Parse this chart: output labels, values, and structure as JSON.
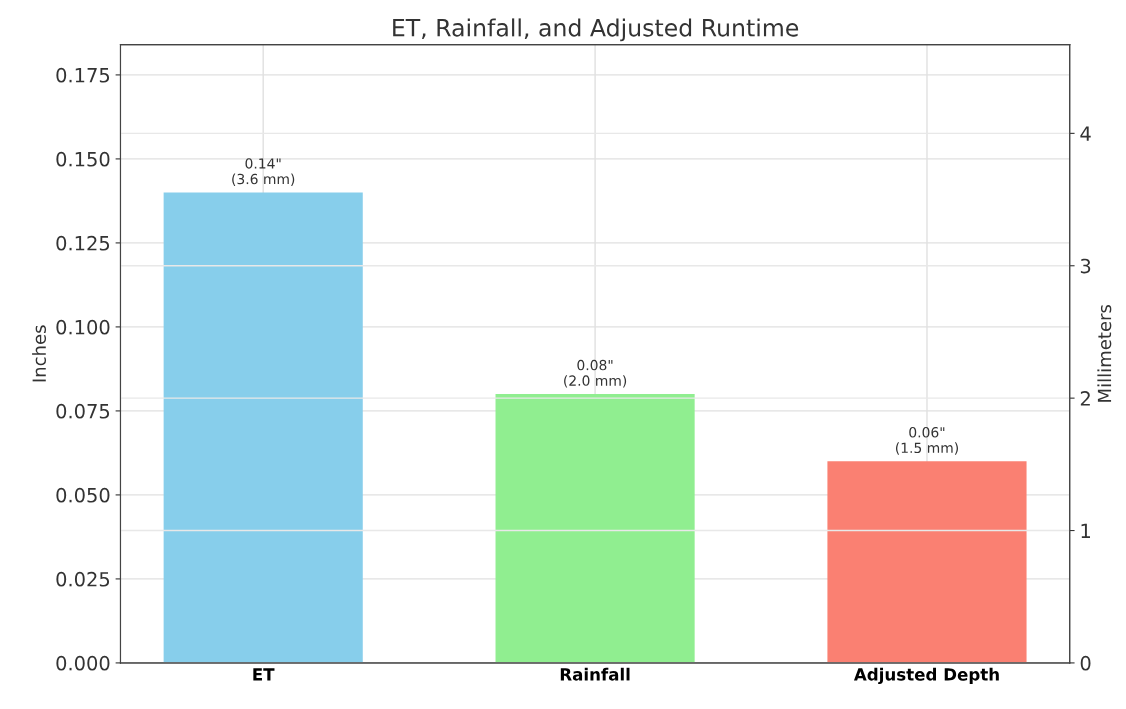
{
  "chart_data": {
    "type": "bar",
    "title": "ET, Rainfall, and Adjusted Runtime",
    "ylabel": "Inches",
    "y2label": "Millimeters",
    "categories": [
      "ET",
      "Rainfall",
      "Adjusted Depth"
    ],
    "values": [
      0.14,
      0.08,
      0.06
    ],
    "colors": [
      "#87ceeb",
      "#90ee90",
      "#fa8072"
    ],
    "value_labels": [
      "0.14\"\n(3.6 mm)",
      "0.08\"\n(2.0 mm)",
      "0.06\"\n(1.5 mm)"
    ],
    "ylim": [
      0,
      0.184
    ],
    "yticks": [
      {
        "value": 0,
        "label": "0.000"
      },
      {
        "value": 0.025,
        "label": "0.025"
      },
      {
        "value": 0.05,
        "label": "0.050"
      },
      {
        "value": 0.075,
        "label": "0.075"
      },
      {
        "value": 0.1,
        "label": "0.100"
      },
      {
        "value": 0.125,
        "label": "0.125"
      },
      {
        "value": 0.15,
        "label": "0.150"
      },
      {
        "value": 0.175,
        "label": "0.175"
      }
    ],
    "y2lim": [
      0,
      4.67
    ],
    "y2ticks": [
      0,
      1,
      2,
      3,
      4
    ],
    "grid": true
  }
}
